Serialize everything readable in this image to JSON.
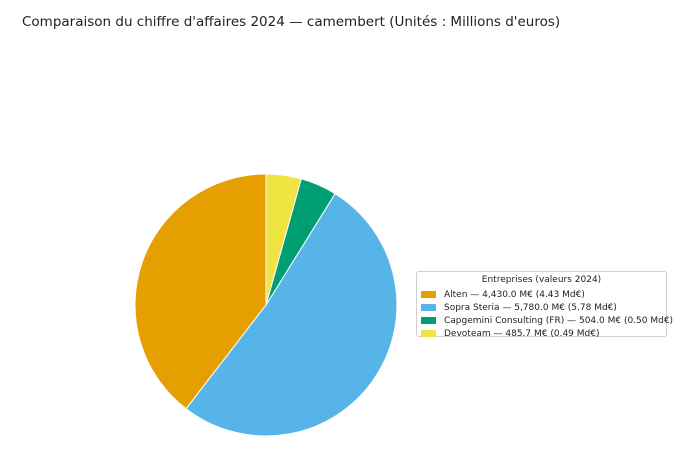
{
  "chart_data": {
    "type": "pie",
    "title": "Comparaison du chiffre d'affaires 2024 — camembert (Unités : Millions d'euros)",
    "legend_title": "Entreprises (valeurs 2024)",
    "legend_placement": "right",
    "start_angle_deg": 90,
    "direction": "counterclockwise",
    "slices": [
      {
        "label": "Alten",
        "value": 4430.0,
        "legend_text": "Alten — 4,430.0 M€ (4.43 Md€)",
        "color": "#E69F00"
      },
      {
        "label": "Sopra Steria",
        "value": 5780.0,
        "legend_text": "Sopra Steria — 5,780.0 M€ (5.78 Md€)",
        "color": "#56B4E9"
      },
      {
        "label": "Capgemini Consulting (FR)",
        "value": 504.0,
        "legend_text": "Capgemini Consulting (FR) — 504.0 M€ (0.50 Md€)",
        "color": "#009E73"
      },
      {
        "label": "Devoteam",
        "value": 485.7,
        "legend_text": "Devoteam — 485.7 M€ (0.49 Md€)",
        "color": "#F0E442"
      }
    ]
  }
}
